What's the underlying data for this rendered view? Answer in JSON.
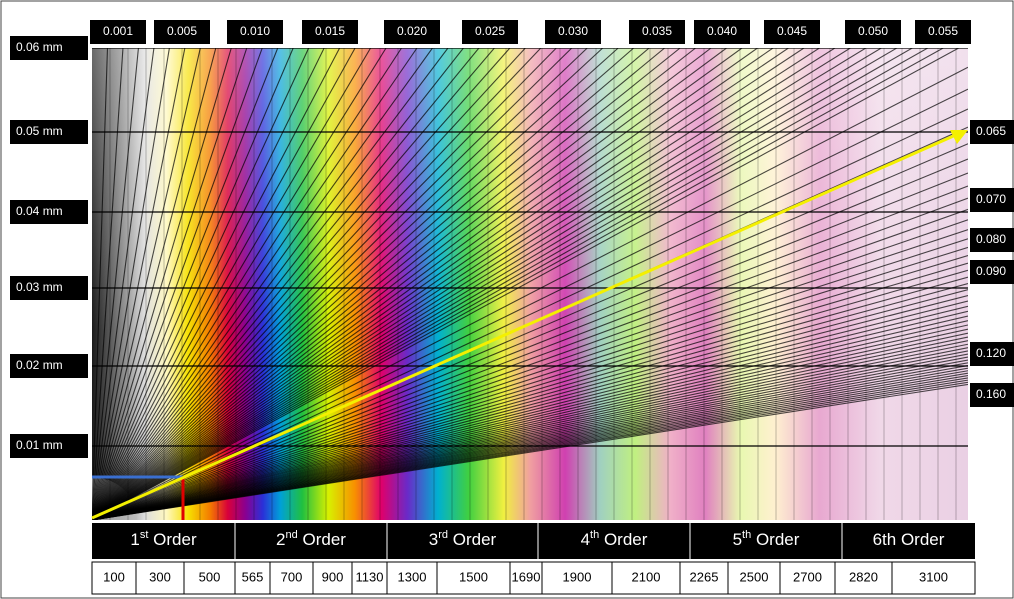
{
  "thickness_labels": [
    "0.06 mm",
    "0.05 mm",
    "0.04 mm",
    "0.03 mm",
    "0.02 mm",
    "0.01 mm"
  ],
  "top_birefringence": [
    "0.001",
    "0.005",
    "0.010",
    "0.015",
    "0.020",
    "0.025",
    "0.030",
    "0.035",
    "0.040",
    "0.045",
    "0.050",
    "0.055"
  ],
  "right_birefringence": [
    "0.065",
    "0.070",
    "0.080",
    "0.090",
    "0.120",
    "0.160"
  ],
  "orders": [
    {
      "num": "1",
      "sup": "st",
      "word": "Order"
    },
    {
      "num": "2",
      "sup": "nd",
      "word": "Order"
    },
    {
      "num": "3",
      "sup": "rd",
      "word": "Order"
    },
    {
      "num": "4",
      "sup": "th",
      "word": "Order"
    },
    {
      "num": "5",
      "sup": "th",
      "word": "Order"
    },
    {
      "num": "6th",
      "sup": "",
      "word": "Order"
    }
  ],
  "retardation": [
    100,
    300,
    500,
    565,
    700,
    900,
    1130,
    1300,
    1500,
    1690,
    1900,
    2100,
    2265,
    2500,
    2700,
    2820,
    3100
  ]
}
